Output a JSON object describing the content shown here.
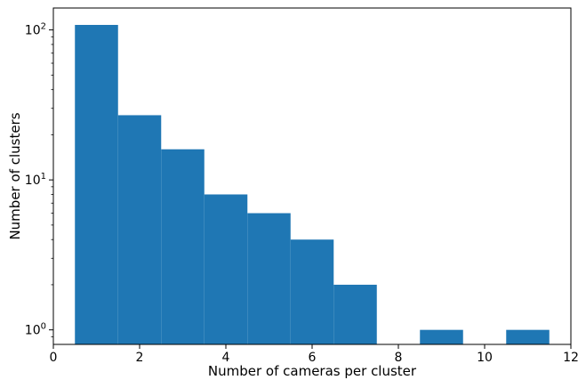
{
  "chart_data": {
    "type": "bar",
    "title": "",
    "xlabel": "Number of cameras per cluster",
    "ylabel": "Number of clusters",
    "x_scale": "linear",
    "y_scale": "log",
    "xlim": [
      0,
      12
    ],
    "ylim": [
      0.8,
      140
    ],
    "bar_color": "#1f77b4",
    "bins": [
      {
        "x0": 0.5,
        "x1": 1.5,
        "value": 108
      },
      {
        "x0": 1.5,
        "x1": 2.5,
        "value": 27
      },
      {
        "x0": 2.5,
        "x1": 3.5,
        "value": 16
      },
      {
        "x0": 3.5,
        "x1": 4.5,
        "value": 8
      },
      {
        "x0": 4.5,
        "x1": 5.5,
        "value": 6
      },
      {
        "x0": 5.5,
        "x1": 6.5,
        "value": 4
      },
      {
        "x0": 6.5,
        "x1": 7.5,
        "value": 2
      },
      {
        "x0": 7.5,
        "x1": 8.5,
        "value": 0
      },
      {
        "x0": 8.5,
        "x1": 9.5,
        "value": 1
      },
      {
        "x0": 9.5,
        "x1": 10.5,
        "value": 0
      },
      {
        "x0": 10.5,
        "x1": 11.5,
        "value": 1
      }
    ],
    "x_ticks": [
      {
        "value": 0,
        "label": "0"
      },
      {
        "value": 2,
        "label": "2"
      },
      {
        "value": 4,
        "label": "4"
      },
      {
        "value": 6,
        "label": "6"
      },
      {
        "value": 8,
        "label": "8"
      },
      {
        "value": 10,
        "label": "10"
      },
      {
        "value": 12,
        "label": "12"
      }
    ],
    "y_major_ticks": [
      {
        "value": 1,
        "base": "10",
        "exp": "0"
      },
      {
        "value": 10,
        "base": "10",
        "exp": "1"
      },
      {
        "value": 100,
        "base": "10",
        "exp": "2"
      }
    ],
    "y_minor_ticks": [
      0.9,
      2,
      3,
      4,
      5,
      6,
      7,
      8,
      9,
      20,
      30,
      40,
      50,
      60,
      70,
      80,
      90
    ],
    "grid": false,
    "legend": "none"
  }
}
